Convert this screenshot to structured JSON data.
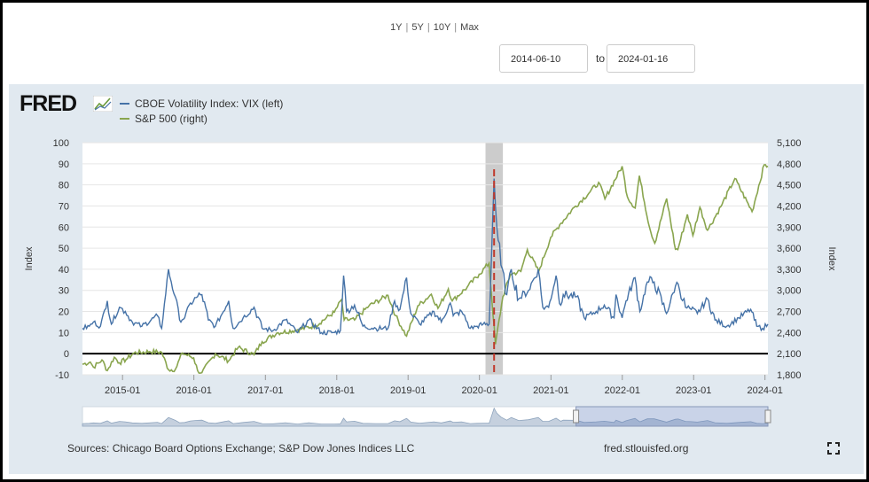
{
  "range_buttons": [
    "1Y",
    "5Y",
    "10Y",
    "Max"
  ],
  "date_range": {
    "start": "2014-06-10",
    "to_label": "to",
    "end": "2024-01-16"
  },
  "brand": {
    "logo_text": "FRED"
  },
  "footer": {
    "sources": "Sources: Chicago Board Options Exchange; S&P Dow Jones Indices LLC",
    "site": "fred.stlouisfed.org"
  },
  "colors": {
    "vix": "#4572a7",
    "sp500": "#89a54e",
    "recession": "#cccccc",
    "panel": "#e1e9f0",
    "covid_marker": "#c0392b"
  },
  "chart_data": {
    "type": "line",
    "x_range": [
      "2014-06-10",
      "2024-01-16"
    ],
    "x_tick_labels": [
      "2015-01",
      "2016-01",
      "2017-01",
      "2018-01",
      "2019-01",
      "2020-01",
      "2021-01",
      "2022-01",
      "2023-01",
      "2024-01"
    ],
    "shaded_periods": [
      [
        "2020-02-01",
        "2020-04-30"
      ]
    ],
    "left_axis": {
      "label": "Index",
      "range": [
        -10,
        100
      ],
      "ticks": [
        -10,
        0,
        10,
        20,
        30,
        40,
        50,
        60,
        70,
        80,
        90,
        100
      ],
      "tick_labels": [
        "-10",
        "0",
        "10",
        "20",
        "30",
        "40",
        "50",
        "60",
        "70",
        "80",
        "90",
        "100"
      ]
    },
    "right_axis": {
      "label": "Index",
      "range": [
        1800,
        5100
      ],
      "ticks": [
        1800,
        2100,
        2400,
        2700,
        3000,
        3300,
        3600,
        3900,
        4200,
        4500,
        4800,
        5100
      ],
      "tick_labels": [
        "1,800",
        "2,100",
        "2,400",
        "2,700",
        "3,000",
        "3,300",
        "3,600",
        "3,900",
        "4,200",
        "4,500",
        "4,800",
        "5,100"
      ]
    },
    "series": [
      {
        "name": "CBOE Volatility Index: VIX (left)",
        "axis": "left",
        "points": [
          [
            "2014-06-10",
            12
          ],
          [
            "2014-07-15",
            13
          ],
          [
            "2014-08-05",
            15
          ],
          [
            "2014-09-10",
            13
          ],
          [
            "2014-10-15",
            25
          ],
          [
            "2014-11-05",
            14
          ],
          [
            "2014-12-16",
            22
          ],
          [
            "2015-01-15",
            20
          ],
          [
            "2015-02-20",
            15
          ],
          [
            "2015-04-10",
            13
          ],
          [
            "2015-06-29",
            18
          ],
          [
            "2015-07-20",
            12
          ],
          [
            "2015-08-24",
            40
          ],
          [
            "2015-09-28",
            27
          ],
          [
            "2015-10-20",
            16
          ],
          [
            "2015-11-15",
            17
          ],
          [
            "2015-12-14",
            24
          ],
          [
            "2016-01-20",
            27
          ],
          [
            "2016-02-11",
            28
          ],
          [
            "2016-03-15",
            16
          ],
          [
            "2016-04-20",
            13
          ],
          [
            "2016-06-27",
            25
          ],
          [
            "2016-07-20",
            12
          ],
          [
            "2016-09-09",
            17
          ],
          [
            "2016-11-04",
            22
          ],
          [
            "2016-12-15",
            12
          ],
          [
            "2017-02-10",
            11
          ],
          [
            "2017-04-13",
            16
          ],
          [
            "2017-06-15",
            10
          ],
          [
            "2017-08-11",
            16
          ],
          [
            "2017-10-15",
            10
          ],
          [
            "2017-12-20",
            10
          ],
          [
            "2018-01-20",
            11
          ],
          [
            "2018-02-05",
            37
          ],
          [
            "2018-02-20",
            20
          ],
          [
            "2018-04-02",
            23
          ],
          [
            "2018-05-15",
            13
          ],
          [
            "2018-07-20",
            12
          ],
          [
            "2018-09-20",
            12
          ],
          [
            "2018-10-24",
            25
          ],
          [
            "2018-11-20",
            21
          ],
          [
            "2018-12-24",
            36
          ],
          [
            "2019-01-15",
            19
          ],
          [
            "2019-03-01",
            14
          ],
          [
            "2019-05-13",
            20
          ],
          [
            "2019-06-20",
            15
          ],
          [
            "2019-08-05",
            24
          ],
          [
            "2019-08-20",
            18
          ],
          [
            "2019-10-02",
            20
          ],
          [
            "2019-11-15",
            12
          ],
          [
            "2019-12-20",
            13
          ],
          [
            "2020-01-20",
            14
          ],
          [
            "2020-02-20",
            14
          ],
          [
            "2020-03-16",
            83
          ],
          [
            "2020-03-30",
            60
          ],
          [
            "2020-04-20",
            42
          ],
          [
            "2020-05-20",
            28
          ],
          [
            "2020-06-12",
            40
          ],
          [
            "2020-07-20",
            26
          ],
          [
            "2020-09-08",
            30
          ],
          [
            "2020-10-28",
            40
          ],
          [
            "2020-11-20",
            22
          ],
          [
            "2020-12-20",
            22
          ],
          [
            "2021-01-27",
            37
          ],
          [
            "2021-02-20",
            23
          ],
          [
            "2021-03-05",
            28
          ],
          [
            "2021-05-12",
            27
          ],
          [
            "2021-06-20",
            17
          ],
          [
            "2021-08-20",
            20
          ],
          [
            "2021-10-01",
            23
          ],
          [
            "2021-11-20",
            17
          ],
          [
            "2021-11-30",
            28
          ],
          [
            "2021-12-31",
            17
          ],
          [
            "2022-01-20",
            25
          ],
          [
            "2022-03-07",
            36
          ],
          [
            "2022-04-01",
            20
          ],
          [
            "2022-05-09",
            34
          ],
          [
            "2022-06-13",
            34
          ],
          [
            "2022-08-15",
            19
          ],
          [
            "2022-09-30",
            32
          ],
          [
            "2022-10-14",
            33
          ],
          [
            "2022-11-20",
            22
          ],
          [
            "2022-12-20",
            21
          ],
          [
            "2023-01-20",
            19
          ],
          [
            "2023-03-13",
            26
          ],
          [
            "2023-04-20",
            16
          ],
          [
            "2023-06-20",
            13
          ],
          [
            "2023-08-20",
            17
          ],
          [
            "2023-10-20",
            21
          ],
          [
            "2023-11-20",
            13
          ],
          [
            "2023-12-20",
            12
          ],
          [
            "2024-01-16",
            14
          ]
        ]
      },
      {
        "name": "S&P 500 (right)",
        "axis": "right",
        "points": [
          [
            "2014-06-10",
            1950
          ],
          [
            "2014-07-20",
            1980
          ],
          [
            "2014-08-05",
            1910
          ],
          [
            "2014-09-18",
            2010
          ],
          [
            "2014-10-15",
            1860
          ],
          [
            "2014-11-20",
            2050
          ],
          [
            "2014-12-16",
            1970
          ],
          [
            "2015-01-20",
            2020
          ],
          [
            "2015-03-01",
            2110
          ],
          [
            "2015-05-20",
            2130
          ],
          [
            "2015-07-20",
            2120
          ],
          [
            "2015-08-25",
            1870
          ],
          [
            "2015-09-29",
            1880
          ],
          [
            "2015-11-03",
            2110
          ],
          [
            "2015-12-31",
            2040
          ],
          [
            "2016-01-20",
            1860
          ],
          [
            "2016-02-11",
            1830
          ],
          [
            "2016-04-20",
            2100
          ],
          [
            "2016-06-27",
            2000
          ],
          [
            "2016-08-15",
            2190
          ],
          [
            "2016-11-04",
            2085
          ],
          [
            "2016-12-15",
            2270
          ],
          [
            "2017-03-01",
            2395
          ],
          [
            "2017-06-15",
            2440
          ],
          [
            "2017-09-15",
            2500
          ],
          [
            "2017-12-20",
            2690
          ],
          [
            "2018-01-26",
            2870
          ],
          [
            "2018-02-08",
            2580
          ],
          [
            "2018-04-02",
            2580
          ],
          [
            "2018-06-15",
            2780
          ],
          [
            "2018-09-20",
            2930
          ],
          [
            "2018-10-29",
            2640
          ],
          [
            "2018-12-24",
            2350
          ],
          [
            "2019-02-20",
            2780
          ],
          [
            "2019-04-30",
            2945
          ],
          [
            "2019-06-03",
            2745
          ],
          [
            "2019-07-26",
            3020
          ],
          [
            "2019-08-15",
            2850
          ],
          [
            "2019-10-30",
            3045
          ],
          [
            "2019-12-31",
            3230
          ],
          [
            "2020-02-19",
            3385
          ],
          [
            "2020-03-23",
            2235
          ],
          [
            "2020-04-30",
            2910
          ],
          [
            "2020-06-08",
            3230
          ],
          [
            "2020-07-31",
            3270
          ],
          [
            "2020-09-02",
            3580
          ],
          [
            "2020-10-30",
            3270
          ],
          [
            "2020-12-31",
            3755
          ],
          [
            "2021-02-15",
            3935
          ],
          [
            "2021-04-30",
            4180
          ],
          [
            "2021-07-20",
            4400
          ],
          [
            "2021-09-02",
            4535
          ],
          [
            "2021-10-04",
            4300
          ],
          [
            "2021-12-31",
            4765
          ],
          [
            "2022-01-27",
            4330
          ],
          [
            "2022-03-08",
            4170
          ],
          [
            "2022-03-29",
            4630
          ],
          [
            "2022-05-20",
            3900
          ],
          [
            "2022-06-16",
            3670
          ],
          [
            "2022-08-16",
            4305
          ],
          [
            "2022-09-30",
            3585
          ],
          [
            "2022-10-12",
            3580
          ],
          [
            "2022-11-30",
            4080
          ],
          [
            "2022-12-28",
            3780
          ],
          [
            "2023-02-02",
            4180
          ],
          [
            "2023-03-13",
            3855
          ],
          [
            "2023-05-20",
            4190
          ],
          [
            "2023-07-31",
            4590
          ],
          [
            "2023-10-27",
            4120
          ],
          [
            "2023-12-28",
            4785
          ],
          [
            "2024-01-16",
            4765
          ]
        ]
      }
    ]
  }
}
